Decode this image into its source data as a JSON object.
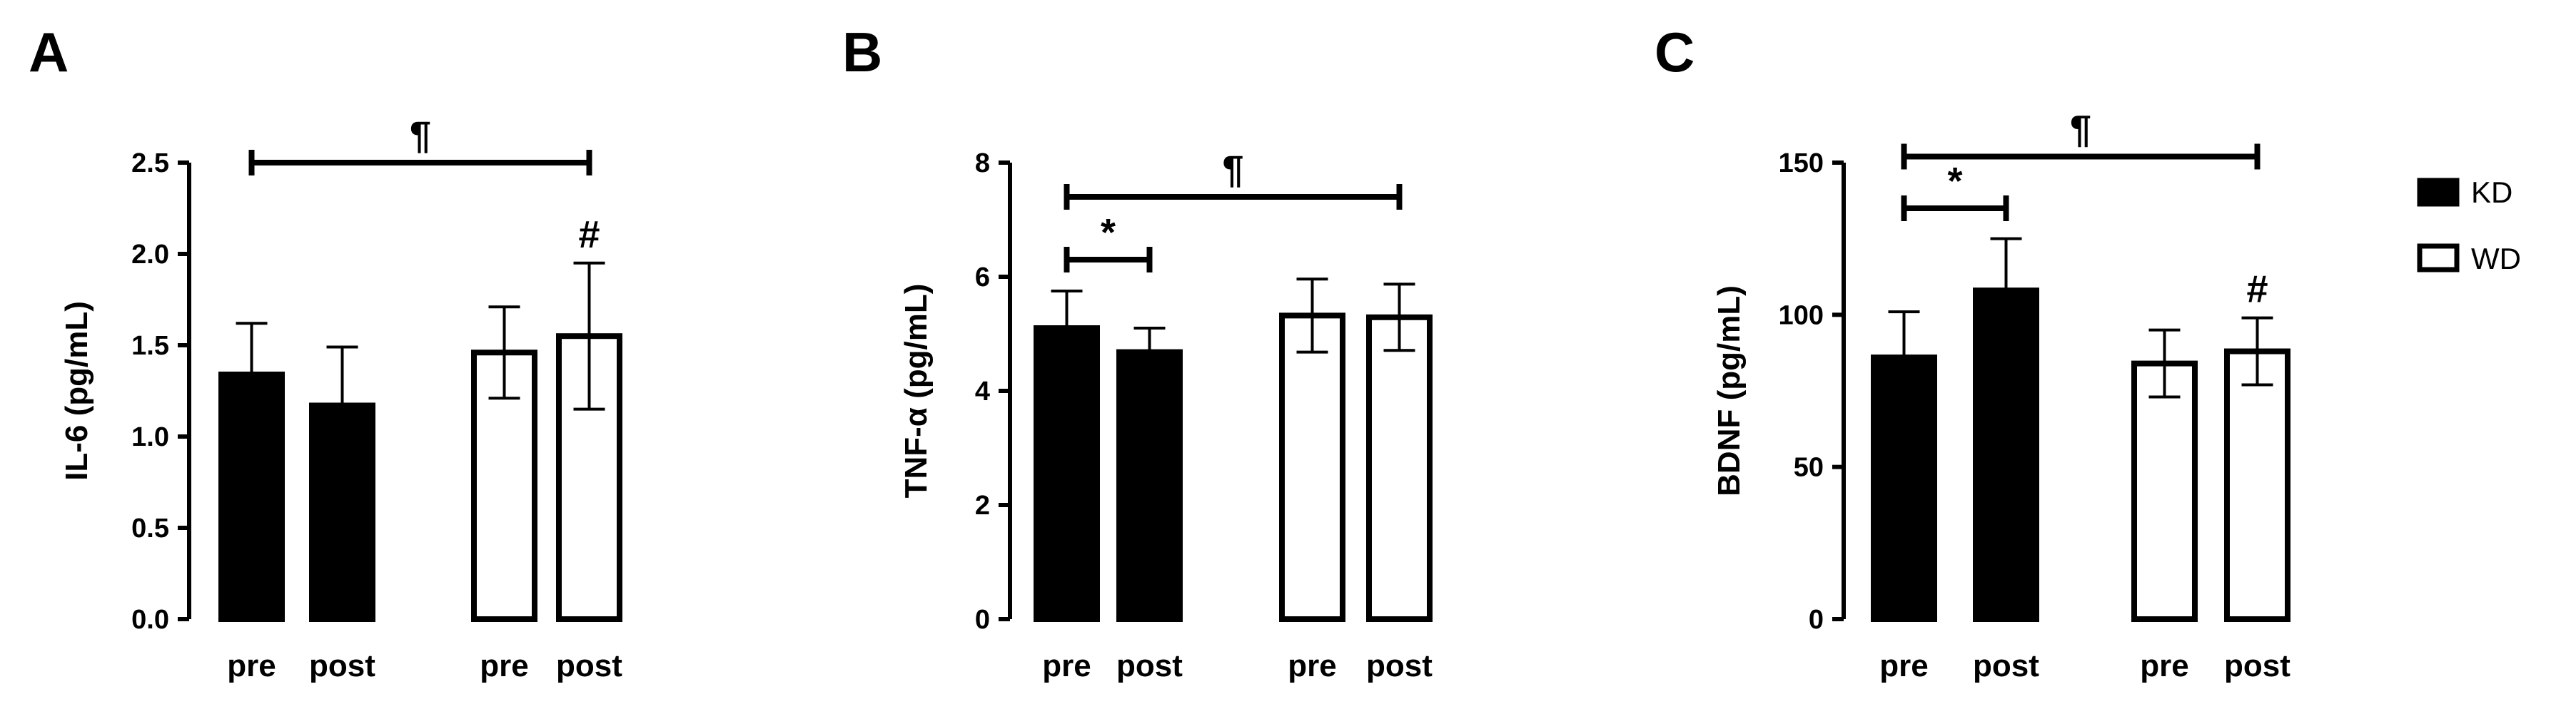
{
  "colors": {
    "KD": "#000000",
    "WD": "#ffffff",
    "stroke": "#000000"
  },
  "legend": {
    "position": "right",
    "entries": [
      "KD",
      "WD"
    ]
  },
  "chart_data": [
    {
      "type": "bar",
      "panel": "A",
      "ylabel": "IL-6 (pg/mL)",
      "ylim": [
        0,
        2.5
      ],
      "yticks": [
        "0.0",
        "0.5",
        "1.0",
        "1.5",
        "2.0",
        "2.5"
      ],
      "categories": [
        "pre",
        "post",
        "pre",
        "post"
      ],
      "groups": [
        "KD",
        "KD",
        "WD",
        "WD"
      ],
      "values": [
        1.34,
        1.17,
        1.46,
        1.55
      ],
      "errors": [
        0.28,
        0.32,
        0.25,
        0.4
      ],
      "annotations": [
        {
          "type": "bracket",
          "from": 0,
          "to": 3,
          "mark": "¶",
          "y": 2.5
        },
        {
          "type": "mark",
          "bar": 3,
          "mark": "#"
        }
      ]
    },
    {
      "type": "bar",
      "panel": "B",
      "ylabel": "TNF-α (pg/mL)",
      "ylim": [
        0,
        8
      ],
      "yticks": [
        "0",
        "2",
        "4",
        "6",
        "8"
      ],
      "categories": [
        "pre",
        "post",
        "pre",
        "post"
      ],
      "groups": [
        "KD",
        "KD",
        "WD",
        "WD"
      ],
      "values": [
        5.1,
        4.68,
        5.32,
        5.29
      ],
      "errors": [
        0.65,
        0.42,
        0.64,
        0.58
      ],
      "annotations": [
        {
          "type": "bracket",
          "from": 0,
          "to": 3,
          "mark": "¶",
          "y": 7.4
        },
        {
          "type": "bracket",
          "from": 0,
          "to": 1,
          "mark": "*",
          "y": 6.3
        }
      ]
    },
    {
      "type": "bar",
      "panel": "C",
      "ylabel": "BDNF (pg/mL)",
      "ylim": [
        0,
        150
      ],
      "yticks": [
        "0",
        "50",
        "100",
        "150"
      ],
      "categories": [
        "pre",
        "post",
        "pre",
        "post"
      ],
      "groups": [
        "KD",
        "KD",
        "WD",
        "WD"
      ],
      "values": [
        86,
        108,
        84,
        88
      ],
      "errors": [
        15,
        17,
        11,
        11
      ],
      "annotations": [
        {
          "type": "bracket",
          "from": 0,
          "to": 3,
          "mark": "¶",
          "y": 152
        },
        {
          "type": "bracket",
          "from": 0,
          "to": 1,
          "mark": "*",
          "y": 135
        },
        {
          "type": "mark",
          "bar": 3,
          "mark": "#"
        }
      ]
    }
  ]
}
